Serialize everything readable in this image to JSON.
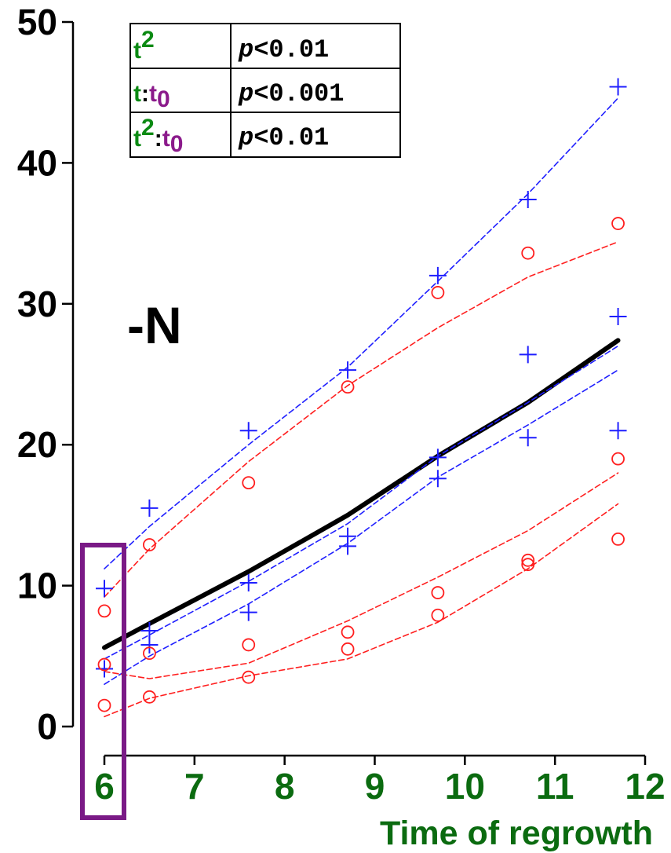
{
  "chart_data": {
    "type": "scatter",
    "title": "",
    "panel_label": "-N",
    "xlabel": "Time of regrowth",
    "ylabel": "",
    "xlim": [
      6,
      12
    ],
    "ylim": [
      0,
      50
    ],
    "x_ticks": [
      "6",
      "7",
      "8",
      "9",
      "10",
      "11",
      "12"
    ],
    "y_ticks": [
      "0",
      "10",
      "20",
      "30",
      "40",
      "50"
    ],
    "grid": false,
    "legend": "none",
    "highlight_box": {
      "x_value": 6,
      "color": "#7a1a86"
    },
    "stats_table": [
      {
        "base": "t",
        "sup": "2",
        "colon": "",
        "t0_base": "",
        "t0_sub": "",
        "p_symbol": "p",
        "p_rest": "<0.01"
      },
      {
        "base": "t",
        "sup": "",
        "colon": ":",
        "t0_base": "t",
        "t0_sub": "0",
        "p_symbol": "p",
        "p_rest": "<0.001"
      },
      {
        "base": "t",
        "sup": "2",
        "colon": ":",
        "t0_base": "t",
        "t0_sub": "0",
        "p_symbol": "p",
        "p_rest": "<0.01"
      }
    ],
    "series": [
      {
        "kind": "points",
        "marker": "plus",
        "color": "#1f1fff",
        "points": [
          [
            6,
            9.8
          ],
          [
            6,
            4.1
          ],
          [
            6.5,
            15.5
          ],
          [
            6.5,
            6.8
          ],
          [
            6.5,
            5.8
          ],
          [
            7.6,
            21.0
          ],
          [
            7.6,
            10.2
          ],
          [
            7.6,
            8.1
          ],
          [
            8.7,
            25.3
          ],
          [
            8.7,
            13.5
          ],
          [
            8.7,
            12.8
          ],
          [
            9.7,
            32.0
          ],
          [
            9.7,
            19.1
          ],
          [
            9.7,
            17.6
          ],
          [
            10.7,
            37.4
          ],
          [
            10.7,
            26.4
          ],
          [
            10.7,
            20.5
          ],
          [
            11.7,
            45.4
          ],
          [
            11.7,
            29.1
          ],
          [
            11.7,
            21.0
          ]
        ]
      },
      {
        "kind": "points",
        "marker": "circle",
        "color": "#ff1f1f",
        "points": [
          [
            6,
            8.2
          ],
          [
            6,
            4.4
          ],
          [
            6,
            1.5
          ],
          [
            6.5,
            12.9
          ],
          [
            6.5,
            5.2
          ],
          [
            6.5,
            2.1
          ],
          [
            7.6,
            17.3
          ],
          [
            7.6,
            5.8
          ],
          [
            7.6,
            3.5
          ],
          [
            8.7,
            24.1
          ],
          [
            8.7,
            6.7
          ],
          [
            8.7,
            5.5
          ],
          [
            9.7,
            30.8
          ],
          [
            9.7,
            9.5
          ],
          [
            9.7,
            7.9
          ],
          [
            10.7,
            33.6
          ],
          [
            10.7,
            11.8
          ],
          [
            10.7,
            11.5
          ],
          [
            11.7,
            35.7
          ],
          [
            11.7,
            19.0
          ],
          [
            11.7,
            13.3
          ]
        ]
      },
      {
        "kind": "line",
        "style": "solid",
        "color": "#000000",
        "width": 6,
        "points": [
          [
            6,
            5.6
          ],
          [
            6.5,
            7.3
          ],
          [
            7.6,
            11.0
          ],
          [
            8.7,
            15.0
          ],
          [
            9.7,
            19.2
          ],
          [
            10.7,
            23.0
          ],
          [
            11.7,
            27.4
          ]
        ]
      },
      {
        "kind": "line",
        "style": "dashed",
        "color": "#1f1fff",
        "width": 1.6,
        "points": [
          [
            6,
            11.2
          ],
          [
            6.5,
            14.2
          ],
          [
            7.6,
            20.0
          ],
          [
            8.7,
            25.5
          ],
          [
            9.7,
            31.6
          ],
          [
            10.7,
            37.8
          ],
          [
            11.7,
            44.6
          ]
        ]
      },
      {
        "kind": "line",
        "style": "dashed",
        "color": "#1f1fff",
        "width": 1.6,
        "points": [
          [
            6,
            4.8
          ],
          [
            6.5,
            6.5
          ],
          [
            7.6,
            10.3
          ],
          [
            8.7,
            14.4
          ],
          [
            9.7,
            19.2
          ],
          [
            10.7,
            23.0
          ],
          [
            11.7,
            27.0
          ]
        ]
      },
      {
        "kind": "line",
        "style": "dashed",
        "color": "#1f1fff",
        "width": 1.6,
        "points": [
          [
            6,
            3.0
          ],
          [
            6.5,
            5.0
          ],
          [
            7.6,
            8.7
          ],
          [
            8.7,
            13.0
          ],
          [
            9.7,
            17.7
          ],
          [
            10.7,
            21.4
          ],
          [
            11.7,
            25.3
          ]
        ]
      },
      {
        "kind": "line",
        "style": "dashed",
        "color": "#ff1f1f",
        "width": 1.6,
        "points": [
          [
            6,
            9.2
          ],
          [
            6.5,
            12.6
          ],
          [
            7.6,
            18.8
          ],
          [
            8.7,
            24.2
          ],
          [
            9.7,
            28.3
          ],
          [
            10.7,
            31.9
          ],
          [
            11.7,
            34.4
          ]
        ]
      },
      {
        "kind": "line",
        "style": "dashed",
        "color": "#ff1f1f",
        "width": 1.6,
        "points": [
          [
            6,
            3.9
          ],
          [
            6.5,
            3.4
          ],
          [
            7.6,
            4.5
          ],
          [
            8.7,
            7.5
          ],
          [
            9.7,
            10.6
          ],
          [
            10.7,
            13.9
          ],
          [
            11.7,
            18.0
          ]
        ]
      },
      {
        "kind": "line",
        "style": "dashed",
        "color": "#ff1f1f",
        "width": 1.6,
        "points": [
          [
            6,
            0.7
          ],
          [
            6.5,
            2.0
          ],
          [
            7.6,
            3.6
          ],
          [
            8.7,
            4.8
          ],
          [
            9.7,
            7.4
          ],
          [
            10.7,
            11.2
          ],
          [
            11.7,
            15.8
          ]
        ]
      }
    ]
  }
}
